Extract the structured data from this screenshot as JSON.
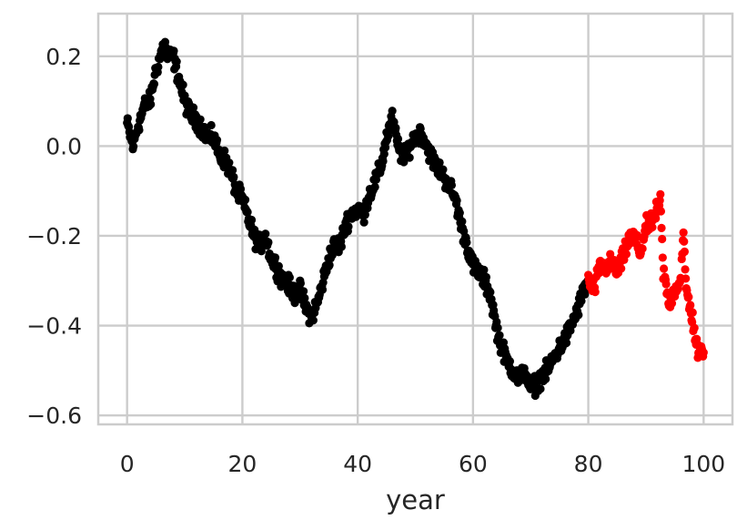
{
  "chart_data": {
    "type": "scatter",
    "title": "",
    "xlabel": "year",
    "ylabel": "",
    "xlim": [
      -5,
      105
    ],
    "ylim": [
      -0.62,
      0.295
    ],
    "grid": true,
    "legend": "none",
    "x_ticks": [
      0,
      20,
      40,
      60,
      80,
      100
    ],
    "x_tick_labels": [
      "0",
      "20",
      "40",
      "60",
      "80",
      "100"
    ],
    "y_ticks": [
      -0.6,
      -0.4,
      -0.2,
      0.0,
      0.2
    ],
    "y_tick_labels": [
      "−0.6",
      "−0.4",
      "−0.2",
      "0.0",
      "0.2"
    ],
    "point_step": 0.1,
    "series": [
      {
        "color": "#000000",
        "x": [
          0.0,
          1.0,
          2.0,
          3.0,
          4.0,
          5.0,
          6.0,
          6.5,
          7.0,
          8.0,
          9.0,
          10.0,
          11.0,
          12.0,
          13.0,
          14.0,
          15.0,
          16.0,
          17.0,
          18.0,
          19.0,
          20.0,
          21.0,
          22.0,
          23.0,
          24.0,
          25.0,
          26.0,
          27.0,
          28.0,
          29.0,
          30.0,
          31.0,
          32.0,
          33.0,
          34.0,
          35.0,
          36.0,
          37.0,
          38.0,
          39.0,
          40.0,
          41.0,
          42.0,
          43.0,
          44.0,
          45.0,
          46.0,
          47.0,
          48.0,
          49.0,
          50.0,
          51.0,
          52.0,
          53.0,
          54.0,
          55.0,
          56.0,
          57.0,
          58.0,
          59.0,
          60.0,
          61.0,
          62.0,
          63.0,
          64.0,
          65.0,
          66.0,
          67.0,
          68.0,
          69.0,
          70.0,
          71.0,
          72.0,
          73.0,
          74.0,
          75.0,
          76.0,
          77.0,
          78.0,
          79.0,
          79.9
        ],
        "y": [
          0.05,
          0.0,
          0.05,
          0.09,
          0.1,
          0.17,
          0.21,
          0.23,
          0.2,
          0.2,
          0.15,
          0.1,
          0.07,
          0.06,
          0.04,
          0.02,
          0.02,
          -0.02,
          -0.03,
          -0.06,
          -0.1,
          -0.12,
          -0.16,
          -0.2,
          -0.22,
          -0.2,
          -0.25,
          -0.27,
          -0.3,
          -0.31,
          -0.33,
          -0.32,
          -0.36,
          -0.38,
          -0.35,
          -0.3,
          -0.25,
          -0.22,
          -0.22,
          -0.17,
          -0.15,
          -0.14,
          -0.15,
          -0.11,
          -0.08,
          -0.05,
          0.02,
          0.06,
          0.0,
          -0.03,
          0.0,
          0.02,
          0.03,
          0.0,
          -0.03,
          -0.05,
          -0.07,
          -0.09,
          -0.12,
          -0.18,
          -0.22,
          -0.27,
          -0.28,
          -0.3,
          -0.33,
          -0.4,
          -0.45,
          -0.48,
          -0.5,
          -0.52,
          -0.5,
          -0.54,
          -0.53,
          -0.51,
          -0.5,
          -0.47,
          -0.45,
          -0.43,
          -0.4,
          -0.37,
          -0.33,
          -0.3
        ]
      },
      {
        "color": "#ff0000",
        "x": [
          80.0,
          81.0,
          82.0,
          83.0,
          84.0,
          85.0,
          86.0,
          87.0,
          88.0,
          89.0,
          90.0,
          91.0,
          92.0,
          92.5,
          93.0,
          94.0,
          95.0,
          96.0,
          96.5,
          97.0,
          98.0,
          99.0,
          100.0
        ],
        "y": [
          -0.3,
          -0.32,
          -0.27,
          -0.27,
          -0.26,
          -0.28,
          -0.25,
          -0.21,
          -0.2,
          -0.24,
          -0.18,
          -0.17,
          -0.14,
          -0.12,
          -0.28,
          -0.35,
          -0.32,
          -0.3,
          -0.2,
          -0.32,
          -0.38,
          -0.46,
          -0.46
        ]
      }
    ]
  }
}
